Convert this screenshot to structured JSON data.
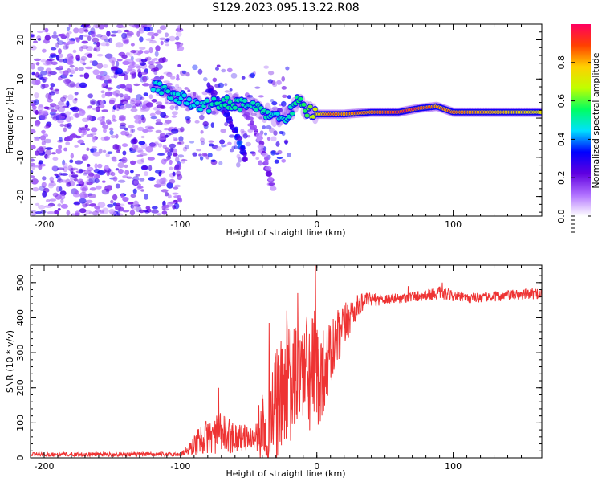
{
  "title": "S129.2023.095.13.22.R08",
  "chart_data": [
    {
      "type": "heatmap",
      "name": "spectrogram",
      "xlabel": "Height of straight line (km)",
      "ylabel": "Frequency (Hz)",
      "xlim": [
        -210,
        165
      ],
      "ylim": [
        -25,
        24
      ],
      "xticks": [
        -200,
        -100,
        0,
        100
      ],
      "xtick_labels": [
        "-200",
        "-100",
        "0",
        "100"
      ],
      "yticks": [
        -20,
        -10,
        0,
        10,
        20
      ],
      "ytick_labels": [
        "-20",
        "-10",
        "0",
        "10",
        "20"
      ],
      "colorbar": {
        "label": "Normalized spectral amplitude",
        "range": [
          0,
          1
        ],
        "ticks": [
          0.0,
          0.2,
          0.4,
          0.6,
          0.8
        ],
        "tick_labels": [
          "0.0",
          "0.2",
          "0.4",
          "0.6",
          "0.8"
        ],
        "colors": [
          "#ffffff",
          "#b070ff",
          "#6000e0",
          "#0000ff",
          "#00e0ff",
          "#00ff60",
          "#c0ff00",
          "#ffd000",
          "#ff4000",
          "#ff0060"
        ]
      },
      "ridge": [
        {
          "x": -120,
          "y": 8,
          "a": 0.3
        },
        {
          "x": -110,
          "y": 7,
          "a": 0.35
        },
        {
          "x": -100,
          "y": 5,
          "a": 0.3
        },
        {
          "x": -90,
          "y": 4,
          "a": 0.3
        },
        {
          "x": -80,
          "y": 3,
          "a": 0.35
        },
        {
          "x": -70,
          "y": 4,
          "a": 0.4
        },
        {
          "x": -60,
          "y": 4,
          "a": 0.4
        },
        {
          "x": -50,
          "y": 3,
          "a": 0.35
        },
        {
          "x": -40,
          "y": 2,
          "a": 0.4
        },
        {
          "x": -30,
          "y": 0,
          "a": 0.3
        },
        {
          "x": -20,
          "y": 1,
          "a": 0.35
        },
        {
          "x": -13,
          "y": 5,
          "a": 0.45
        },
        {
          "x": -8,
          "y": 2,
          "a": 0.5
        },
        {
          "x": 0,
          "y": 1,
          "a": 0.75
        },
        {
          "x": 10,
          "y": 1,
          "a": 0.9
        },
        {
          "x": 20,
          "y": 1,
          "a": 0.85
        },
        {
          "x": 40,
          "y": 1.5,
          "a": 0.9
        },
        {
          "x": 60,
          "y": 1.5,
          "a": 1.0
        },
        {
          "x": 75,
          "y": 2.5,
          "a": 0.95
        },
        {
          "x": 88,
          "y": 3,
          "a": 0.85
        },
        {
          "x": 100,
          "y": 1.5,
          "a": 0.9
        },
        {
          "x": 120,
          "y": 1.5,
          "a": 0.85
        },
        {
          "x": 140,
          "y": 1.5,
          "a": 0.8
        },
        {
          "x": 165,
          "y": 1.5,
          "a": 0.75
        }
      ],
      "branches": [
        {
          "name": "descending-branch-1",
          "points": [
            [
              -80,
              8
            ],
            [
              -70,
              3
            ],
            [
              -60,
              -3
            ],
            [
              -52,
              -11
            ]
          ],
          "a": 0.3
        },
        {
          "name": "descending-branch-2",
          "points": [
            [
              -55,
              3
            ],
            [
              -45,
              -3
            ],
            [
              -38,
              -10
            ],
            [
              -32,
              -18
            ]
          ],
          "a": 0.15
        }
      ]
    },
    {
      "type": "line",
      "name": "snr",
      "xlabel": "Height of straight line (km)",
      "ylabel": "SNR (10 * v/v)",
      "xlim": [
        -210,
        165
      ],
      "ylim": [
        0,
        550
      ],
      "xticks": [
        -200,
        -100,
        0,
        100
      ],
      "xtick_labels": [
        "-200",
        "-100",
        "0",
        "100"
      ],
      "yticks": [
        0,
        100,
        200,
        300,
        400,
        500
      ],
      "ytick_labels": [
        "0",
        "100",
        "200",
        "300",
        "400",
        "500"
      ],
      "color": "#ee3333",
      "envelope": [
        {
          "x": -210,
          "mean": 10,
          "noise": 6
        },
        {
          "x": -100,
          "mean": 10,
          "noise": 6
        },
        {
          "x": -93,
          "mean": 25,
          "noise": 20
        },
        {
          "x": -85,
          "mean": 55,
          "noise": 45
        },
        {
          "x": -70,
          "mean": 70,
          "noise": 60
        },
        {
          "x": -60,
          "mean": 60,
          "noise": 45
        },
        {
          "x": -45,
          "mean": 55,
          "noise": 30
        },
        {
          "x": -40,
          "mean": 100,
          "noise": 120
        },
        {
          "x": -30,
          "mean": 150,
          "noise": 160
        },
        {
          "x": -20,
          "mean": 200,
          "noise": 180
        },
        {
          "x": -10,
          "mean": 250,
          "noise": 150
        },
        {
          "x": -2,
          "mean": 230,
          "noise": 200
        },
        {
          "x": 5,
          "mean": 250,
          "noise": 120
        },
        {
          "x": 15,
          "mean": 330,
          "noise": 90
        },
        {
          "x": 25,
          "mean": 410,
          "noise": 50
        },
        {
          "x": 35,
          "mean": 450,
          "noise": 20
        },
        {
          "x": 60,
          "mean": 455,
          "noise": 14
        },
        {
          "x": 90,
          "mean": 470,
          "noise": 18
        },
        {
          "x": 110,
          "mean": 455,
          "noise": 14
        },
        {
          "x": 165,
          "mean": 470,
          "noise": 16
        }
      ],
      "spikes": [
        {
          "x": -1,
          "y": 550
        },
        {
          "x": -14,
          "y": 470
        },
        {
          "x": -22,
          "y": 420
        },
        {
          "x": -35,
          "y": 385
        },
        {
          "x": -72,
          "y": 200
        },
        {
          "x": 1,
          "y": 95
        },
        {
          "x": 92,
          "y": 500
        },
        {
          "x": 67,
          "y": 490
        }
      ]
    }
  ]
}
